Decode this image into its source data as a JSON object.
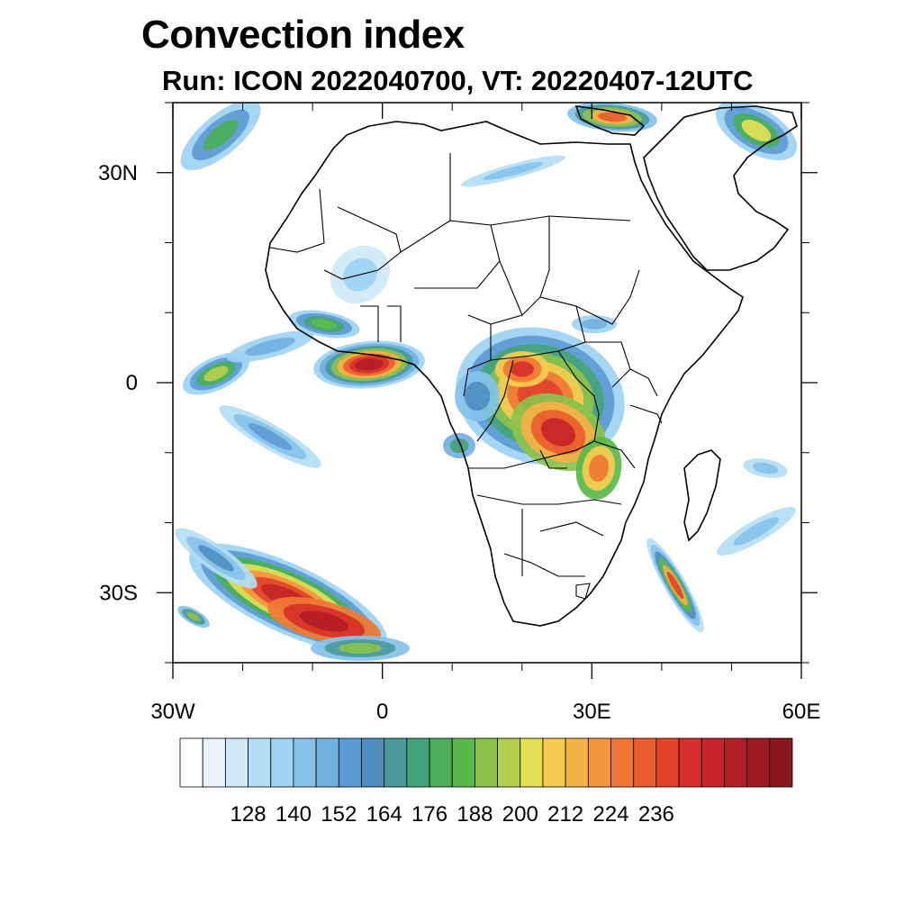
{
  "title": "Convection index",
  "subtitle": "Run: ICON 2022040700,  VT: 20220407-12UTC",
  "map": {
    "region": "Africa and surrounding ocean",
    "lon_range": [
      -30,
      60
    ],
    "lat_range": [
      -40,
      40
    ],
    "lon_ticks": [
      {
        "value": -30,
        "label": "30W"
      },
      {
        "value": 0,
        "label": "0"
      },
      {
        "value": 30,
        "label": "30E"
      },
      {
        "value": 60,
        "label": "60E"
      }
    ],
    "lat_ticks": [
      {
        "value": 30,
        "label": "30N"
      },
      {
        "value": 0,
        "label": "0"
      },
      {
        "value": -30,
        "label": "30S"
      }
    ]
  },
  "colorbar": {
    "colors": [
      "#ffffff",
      "#e8f4fb",
      "#cfe9f7",
      "#b5def5",
      "#9dd3f3",
      "#86c2ea",
      "#72b0e0",
      "#5d9bd4",
      "#4f8fbf",
      "#4a9a9a",
      "#45a37c",
      "#4aae5a",
      "#5ab84a",
      "#8cc24c",
      "#b4cf4e",
      "#e4e054",
      "#f6cc50",
      "#f6b147",
      "#f4943c",
      "#f07834",
      "#ea5d2e",
      "#e2442b",
      "#d6302a",
      "#c62428",
      "#b31d26",
      "#9e1a22",
      "#8a171e"
    ],
    "labels": [
      "128",
      "140",
      "152",
      "164",
      "176",
      "188",
      "200",
      "212",
      "224",
      "236"
    ]
  }
}
